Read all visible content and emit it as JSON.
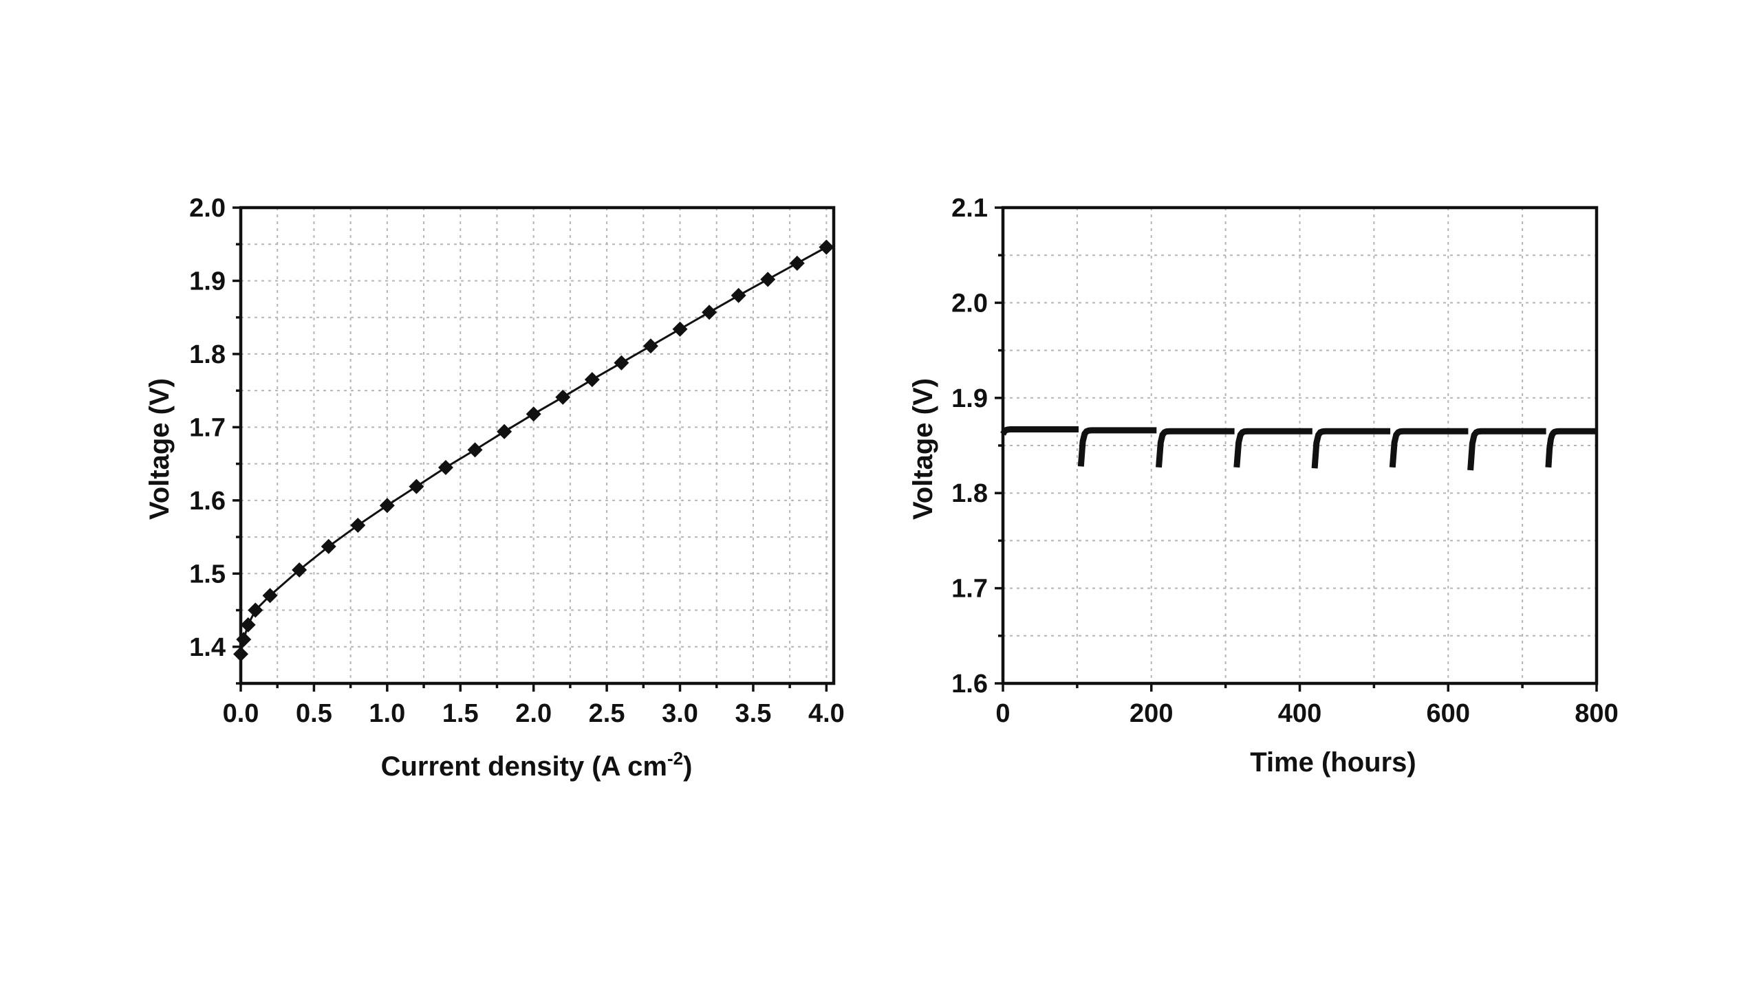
{
  "chart_data": [
    {
      "type": "line",
      "xlabel": "Current density (A cm",
      "xlabel_sup": "-2",
      "xlabel_end": ")",
      "ylabel": "Voltage (V)",
      "xlim": [
        0,
        4.05
      ],
      "ylim": [
        1.35,
        2.0
      ],
      "xticks": [
        0,
        0.5,
        1.0,
        1.5,
        2.0,
        2.5,
        3.0,
        3.5,
        4.0
      ],
      "xtick_labels": [
        "0.0",
        "0.5",
        "1.0",
        "1.5",
        "2.0",
        "2.5",
        "3.0",
        "3.5",
        "4.0"
      ],
      "yticks": [
        1.4,
        1.5,
        1.6,
        1.7,
        1.8,
        1.9,
        2.0
      ],
      "ytick_labels": [
        "1.4",
        "1.5",
        "1.6",
        "1.7",
        "1.8",
        "1.9",
        "2.0"
      ],
      "grid": true,
      "marker": "diamond",
      "color": "#111111",
      "series": [
        {
          "x": [
            0.0,
            0.02,
            0.05,
            0.1,
            0.2,
            0.4,
            0.6,
            0.8,
            1.0,
            1.2,
            1.4,
            1.6,
            1.8,
            2.0,
            2.2,
            2.4,
            2.6,
            2.8,
            3.0,
            3.2,
            3.4,
            3.6,
            3.8,
            4.0
          ],
          "y": [
            1.39,
            1.41,
            1.43,
            1.45,
            1.47,
            1.505,
            1.537,
            1.566,
            1.593,
            1.619,
            1.645,
            1.669,
            1.694,
            1.718,
            1.741,
            1.765,
            1.788,
            1.811,
            1.834,
            1.857,
            1.88,
            1.902,
            1.924,
            1.946
          ]
        }
      ]
    },
    {
      "type": "line",
      "xlabel": "Time (hours)",
      "ylabel": "Voltage (V)",
      "xlim": [
        0,
        800
      ],
      "ylim": [
        1.6,
        2.1
      ],
      "xticks": [
        0,
        200,
        400,
        600,
        800
      ],
      "xtick_labels": [
        "0",
        "200",
        "400",
        "600",
        "800"
      ],
      "yticks": [
        1.6,
        1.7,
        1.8,
        1.9,
        2.0,
        2.1
      ],
      "ytick_labels": [
        "1.6",
        "1.7",
        "1.8",
        "1.9",
        "2.0",
        "2.1"
      ],
      "grid": true,
      "color": "#111111",
      "segments": [
        {
          "start": 0,
          "end": 102,
          "drop": 1.862,
          "plateau": 1.867
        },
        {
          "start": 105,
          "end": 207,
          "drop": 1.828,
          "plateau": 1.866
        },
        {
          "start": 210,
          "end": 312,
          "drop": 1.827,
          "plateau": 1.865
        },
        {
          "start": 315,
          "end": 417,
          "drop": 1.827,
          "plateau": 1.865
        },
        {
          "start": 420,
          "end": 522,
          "drop": 1.826,
          "plateau": 1.865
        },
        {
          "start": 525,
          "end": 627,
          "drop": 1.827,
          "plateau": 1.865
        },
        {
          "start": 630,
          "end": 732,
          "drop": 1.824,
          "plateau": 1.865
        },
        {
          "start": 735,
          "end": 800,
          "drop": 1.827,
          "plateau": 1.865
        }
      ]
    }
  ]
}
